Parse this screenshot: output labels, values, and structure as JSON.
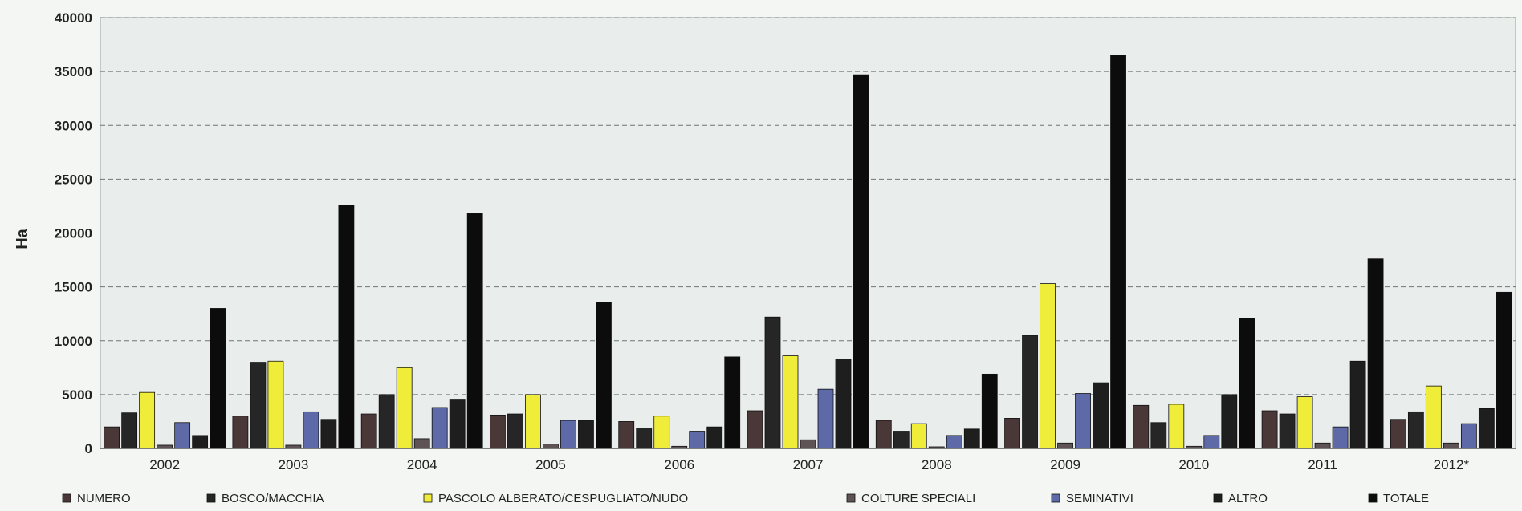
{
  "chart_data": {
    "type": "bar",
    "title": "",
    "xlabel": "",
    "ylabel": "Ha",
    "ylim": [
      0,
      40000
    ],
    "yticks": [
      0,
      5000,
      10000,
      15000,
      20000,
      25000,
      30000,
      35000,
      40000
    ],
    "grid": true,
    "legend_position": "bottom",
    "categories": [
      "2002",
      "2003",
      "2004",
      "2005",
      "2006",
      "2007",
      "2008",
      "2009",
      "2010",
      "2011",
      "2012*"
    ],
    "series": [
      {
        "name": "NUMERO",
        "color": "#4a3838",
        "values": [
          2000,
          3000,
          3200,
          3100,
          2500,
          3500,
          2600,
          2800,
          4000,
          3500,
          2700
        ]
      },
      {
        "name": "BOSCO/MACCHIA",
        "color": "#262626",
        "values": [
          3300,
          8000,
          5000,
          3200,
          1900,
          12200,
          1600,
          10500,
          2400,
          3200,
          3400
        ]
      },
      {
        "name": "PASCOLO ALBERATO/CESPUGLIATO/NUDO",
        "color": "#f0ec3a",
        "values": [
          5200,
          8100,
          7500,
          5000,
          3000,
          8600,
          2300,
          15300,
          4100,
          4800,
          5800
        ]
      },
      {
        "name": "COLTURE SPECIALI",
        "color": "#5e5456",
        "values": [
          300,
          300,
          900,
          400,
          200,
          800,
          150,
          500,
          200,
          500,
          500
        ]
      },
      {
        "name": "SEMINATIVI",
        "color": "#5e6aa8",
        "values": [
          2400,
          3400,
          3800,
          2600,
          1600,
          5500,
          1200,
          5100,
          1200,
          2000,
          2300
        ]
      },
      {
        "name": "ALTRO",
        "color": "#1e1e1e",
        "values": [
          1200,
          2700,
          4500,
          2600,
          2000,
          8300,
          1800,
          6100,
          5000,
          8100,
          3700
        ]
      },
      {
        "name": "TOTALE",
        "color": "#0c0c0c",
        "values": [
          13000,
          22600,
          21800,
          13600,
          8500,
          34700,
          6900,
          36500,
          12100,
          17600,
          14500
        ]
      }
    ]
  }
}
